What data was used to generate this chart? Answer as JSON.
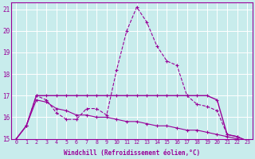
{
  "xlabel": "Windchill (Refroidissement éolien,°C)",
  "bg_color": "#c8ecec",
  "grid_color": "#ffffff",
  "line_color": "#990099",
  "xlim": [
    -0.5,
    23.5
  ],
  "ylim": [
    15,
    21.3
  ],
  "yticks": [
    15,
    16,
    17,
    18,
    19,
    20,
    21
  ],
  "xticks": [
    0,
    1,
    2,
    3,
    4,
    5,
    6,
    7,
    8,
    9,
    10,
    11,
    12,
    13,
    14,
    15,
    16,
    17,
    18,
    19,
    20,
    21,
    22,
    23
  ],
  "series": [
    {
      "x": [
        0,
        1,
        2,
        3,
        4,
        5,
        6,
        7,
        8,
        9,
        10,
        11,
        12,
        13,
        14,
        15,
        16,
        17,
        18,
        19,
        20,
        21,
        22,
        23
      ],
      "y": [
        15.0,
        15.6,
        17.0,
        16.8,
        16.2,
        15.9,
        15.9,
        16.4,
        16.4,
        16.1,
        18.2,
        20.0,
        21.1,
        20.4,
        19.3,
        18.6,
        18.4,
        17.0,
        16.6,
        16.5,
        16.3,
        15.2,
        15.1,
        14.9
      ]
    },
    {
      "x": [
        0,
        1,
        2,
        3,
        4,
        5,
        6,
        7,
        8,
        9,
        10,
        11,
        12,
        13,
        14,
        15,
        16,
        17,
        18,
        19,
        20,
        21,
        22,
        23
      ],
      "y": [
        15.0,
        15.6,
        17.0,
        17.0,
        17.0,
        17.0,
        17.0,
        17.0,
        17.0,
        17.0,
        17.0,
        17.0,
        17.0,
        17.0,
        17.0,
        17.0,
        17.0,
        17.0,
        17.0,
        17.0,
        16.8,
        15.2,
        15.1,
        14.9
      ]
    },
    {
      "x": [
        0,
        1,
        2,
        3,
        4,
        5,
        6,
        7,
        8,
        9,
        10,
        11,
        12,
        13,
        14,
        15,
        16,
        17,
        18,
        19,
        20,
        21,
        22,
        23
      ],
      "y": [
        15.0,
        15.6,
        16.8,
        16.7,
        16.4,
        16.3,
        16.1,
        16.1,
        16.0,
        16.0,
        15.9,
        15.8,
        15.8,
        15.7,
        15.6,
        15.6,
        15.5,
        15.4,
        15.4,
        15.3,
        15.2,
        15.1,
        15.0,
        14.9
      ]
    }
  ]
}
